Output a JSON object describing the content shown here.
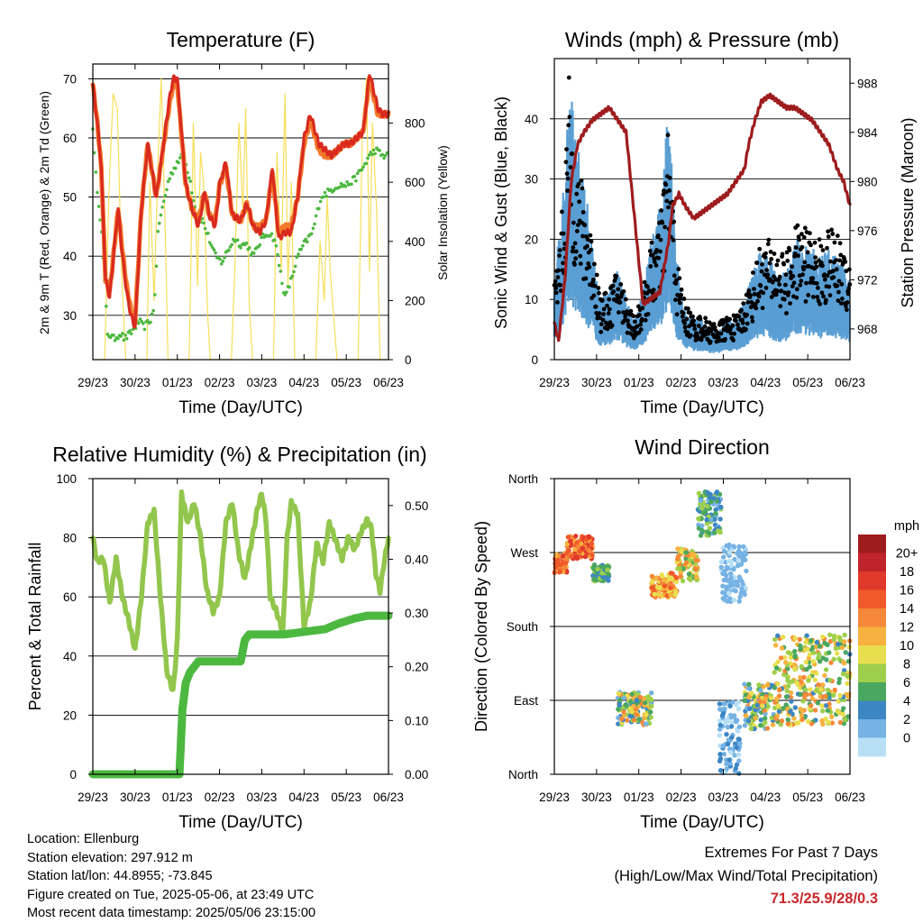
{
  "colors": {
    "temp_2m": "#d92a1f",
    "temp_9m": "#f2782a",
    "dewpoint": "#4cb840",
    "solar": "#f7df5a",
    "wind": "#5a9fd4",
    "gust": "#000000",
    "pressure": "#9e1c1e",
    "rh": "#92c64c",
    "rain": "#4cb840",
    "extremes": "#c8282b"
  },
  "x_axis": {
    "tick_labels": [
      "29/23",
      "30/23",
      "01/23",
      "02/23",
      "03/23",
      "04/23",
      "05/23",
      "06/23"
    ],
    "label": "Time (Day/UTC)"
  },
  "chart_data": [
    {
      "id": "temperature",
      "type": "line",
      "title": "Temperature (F)",
      "xlabel": "Time (Day/UTC)",
      "ylabel": "2m & 9m T (Red, Orange) & 2m Td (Green)",
      "ylabel_right": "Solar Insolation (Yellow)",
      "xlim": [
        0,
        7
      ],
      "ylim": [
        22.5,
        72.5
      ],
      "ylim_right": [
        0,
        1000
      ],
      "yticks": [
        30,
        40,
        50,
        60,
        70
      ],
      "yticks_right": [
        0,
        200,
        400,
        600,
        800
      ],
      "series": [
        {
          "name": "2m T",
          "axis": "left",
          "color_key": "temp_2m",
          "x": [
            0,
            0.1,
            0.2,
            0.3,
            0.4,
            0.5,
            0.6,
            0.7,
            0.8,
            0.9,
            1.0,
            1.15,
            1.3,
            1.5,
            1.6,
            1.8,
            1.9,
            2.0,
            2.2,
            2.35,
            2.5,
            2.65,
            2.75,
            2.9,
            3.0,
            3.15,
            3.3,
            3.5,
            3.65,
            3.8,
            3.95,
            4.1,
            4.25,
            4.4,
            4.55,
            4.7,
            4.85,
            5.0,
            5.15,
            5.35,
            5.5,
            5.65,
            5.8,
            5.95,
            6.1,
            6.25,
            6.4,
            6.55,
            6.65,
            6.75,
            6.85,
            7.0
          ],
          "values": [
            69,
            63,
            55,
            36,
            33,
            41,
            48,
            40,
            34,
            30,
            28,
            48,
            59,
            50,
            55,
            66,
            70,
            70,
            52,
            48,
            45,
            51,
            47,
            45,
            52,
            56,
            47,
            46,
            49,
            45,
            44,
            46,
            55,
            43,
            44,
            44,
            50,
            60,
            64,
            59,
            58,
            57,
            58,
            59,
            59,
            60,
            61,
            71,
            68,
            65,
            64,
            64
          ]
        },
        {
          "name": "9m T",
          "axis": "left",
          "color_key": "temp_9m",
          "x": [
            0,
            0.1,
            0.2,
            0.3,
            0.4,
            0.5,
            0.6,
            0.7,
            0.8,
            0.9,
            1.0,
            1.15,
            1.3,
            1.5,
            1.6,
            1.8,
            1.9,
            2.0,
            2.2,
            2.35,
            2.5,
            2.65,
            2.75,
            2.9,
            3.0,
            3.15,
            3.3,
            3.5,
            3.65,
            3.8,
            3.95,
            4.1,
            4.25,
            4.4,
            4.55,
            4.7,
            4.85,
            5.0,
            5.15,
            5.35,
            5.5,
            5.65,
            5.8,
            5.95,
            6.1,
            6.25,
            6.4,
            6.55,
            6.65,
            6.75,
            6.85,
            7.0
          ],
          "values": [
            69,
            63,
            55,
            36,
            34,
            41,
            48,
            41,
            35,
            31,
            29,
            48,
            59,
            50,
            55,
            65,
            69,
            69,
            52,
            48,
            46,
            51,
            47,
            46,
            52,
            55,
            47,
            46,
            49,
            45,
            45,
            46,
            54,
            44,
            45,
            45,
            50,
            59,
            63,
            58,
            57,
            57,
            58,
            59,
            59,
            60,
            61,
            70,
            67,
            64,
            64,
            64
          ]
        },
        {
          "name": "2m Td",
          "axis": "left",
          "color_key": "dewpoint",
          "x": [
            0,
            0.05,
            0.2,
            0.35,
            0.5,
            0.65,
            0.75,
            0.9,
            1.0,
            1.1,
            1.2,
            1.35,
            1.45,
            1.55,
            1.8,
            2.0,
            2.15,
            2.3,
            2.45,
            2.6,
            2.75,
            2.9,
            3.05,
            3.2,
            3.35,
            3.5,
            3.65,
            3.8,
            4.0,
            4.15,
            4.3,
            4.45,
            4.55,
            4.7,
            4.85,
            5.0,
            5.2,
            5.4,
            5.6,
            5.8,
            6.0,
            6.2,
            6.4,
            6.55,
            6.7,
            6.85,
            7.0
          ],
          "values": [
            62,
            55,
            45,
            27,
            26,
            27,
            26,
            27,
            28,
            29,
            28,
            29,
            31,
            45,
            53,
            56,
            57,
            53,
            47,
            46,
            43,
            40,
            39,
            41,
            43,
            42,
            42,
            40,
            43,
            44,
            43,
            37,
            33,
            36,
            40,
            42,
            44,
            50,
            51,
            52,
            52,
            53,
            55,
            57,
            58,
            57,
            57
          ]
        },
        {
          "name": "Solar Insolation",
          "axis": "right",
          "color_key": "solar",
          "x": [
            0,
            0.28,
            0.38,
            0.48,
            0.58,
            0.68,
            0.78,
            1.28,
            1.35,
            1.45,
            1.55,
            1.62,
            1.72,
            1.78,
            2.28,
            2.38,
            2.48,
            2.55,
            2.62,
            2.72,
            2.78,
            3.28,
            3.36,
            3.46,
            3.55,
            3.62,
            3.7,
            3.78,
            4.28,
            4.36,
            4.46,
            4.55,
            4.62,
            4.7,
            4.78,
            5.28,
            5.38,
            5.48,
            5.55,
            5.62,
            5.7,
            5.78,
            6.28,
            6.38,
            6.48,
            6.55,
            6.62,
            6.72,
            6.8,
            7.0
          ],
          "values": [
            0,
            0,
            560,
            900,
            850,
            300,
            0,
            0,
            600,
            200,
            700,
            950,
            400,
            0,
            0,
            800,
            250,
            700,
            600,
            150,
            0,
            0,
            300,
            800,
            500,
            850,
            200,
            0,
            0,
            700,
            300,
            900,
            250,
            600,
            0,
            0,
            400,
            200,
            550,
            300,
            150,
            0,
            0,
            750,
            950,
            300,
            800,
            500,
            0,
            0
          ]
        }
      ]
    },
    {
      "id": "winds",
      "type": "scatter",
      "title": "Winds (mph) & Pressure (mb)",
      "xlabel": "Time (Day/UTC)",
      "ylabel": "Sonic Wind & Gust (Blue, Black)",
      "ylabel_right": "Station Pressure (Maroon)",
      "xlim": [
        0,
        7
      ],
      "ylim": [
        0,
        50
      ],
      "ylim_right": [
        965.5,
        990
      ],
      "yticks": [
        0,
        10,
        20,
        30,
        40
      ],
      "yticks_right": [
        968,
        972,
        976,
        980,
        984,
        988
      ],
      "wind_envelope": {
        "x": [
          0,
          0.2,
          0.35,
          0.5,
          0.7,
          0.9,
          1.1,
          1.3,
          1.5,
          1.7,
          1.9,
          2.1,
          2.3,
          2.5,
          2.7,
          2.9,
          3.1,
          3.3,
          3.5,
          3.7,
          3.9,
          4.1,
          4.3,
          4.5,
          4.7,
          4.9,
          5.1,
          5.3,
          5.5,
          5.7,
          5.9,
          6.1,
          6.3,
          6.5,
          6.7,
          6.9,
          7.0
        ],
        "mean": [
          8,
          16,
          28,
          22,
          18,
          12,
          6,
          7,
          9,
          6,
          4,
          7,
          12,
          15,
          25,
          10,
          5,
          4,
          4,
          3,
          3,
          4,
          4,
          6,
          9,
          11,
          10,
          8,
          9,
          12,
          12,
          11,
          10,
          11,
          10,
          9,
          8
        ],
        "gust": [
          12,
          25,
          45,
          32,
          27,
          20,
          10,
          11,
          15,
          10,
          7,
          11,
          19,
          22,
          38,
          16,
          9,
          7,
          7,
          6,
          6,
          7,
          7,
          10,
          14,
          19,
          19,
          18,
          17,
          21,
          22,
          20,
          19,
          21,
          20,
          18,
          16
        ]
      },
      "pressure": {
        "x": [
          0,
          0.1,
          0.25,
          0.4,
          0.55,
          0.7,
          0.9,
          1.1,
          1.3,
          1.5,
          1.7,
          1.9,
          2.1,
          2.3,
          2.5,
          2.7,
          2.8,
          2.95,
          3.1,
          3.3,
          3.5,
          3.7,
          3.9,
          4.1,
          4.3,
          4.5,
          4.6,
          4.75,
          4.9,
          5.1,
          5.3,
          5.5,
          5.7,
          5.9,
          6.1,
          6.3,
          6.5,
          6.7,
          6.85,
          7.0
        ],
        "values": [
          968.5,
          967,
          972,
          980,
          983,
          984,
          985,
          985.5,
          986,
          985,
          984,
          977,
          970,
          970.5,
          971,
          975,
          978,
          979,
          978,
          977,
          977.5,
          978,
          978.5,
          979,
          980,
          981,
          983,
          985,
          986.5,
          987,
          986.5,
          986,
          986,
          985.5,
          985,
          984,
          983,
          981,
          980,
          978
        ]
      }
    },
    {
      "id": "rh_precip",
      "type": "line",
      "title": "Relative Humidity (%) & Precipitation (in)",
      "xlabel": "Time (Day/UTC)",
      "ylabel": "Percent & Total Rainfall",
      "xlim": [
        0,
        7
      ],
      "ylim": [
        0,
        100
      ],
      "ylim_right": [
        0,
        0.55
      ],
      "yticks": [
        0,
        20,
        40,
        60,
        80,
        100
      ],
      "yticks_right": [
        "0.00",
        "0.10",
        "0.20",
        "0.30",
        "0.40",
        "0.50"
      ],
      "series": [
        {
          "name": "Relative Humidity",
          "axis": "left",
          "color_key": "rh",
          "x": [
            0,
            0.1,
            0.25,
            0.4,
            0.55,
            0.7,
            0.85,
            1.0,
            1.15,
            1.3,
            1.45,
            1.6,
            1.75,
            1.9,
            2.0,
            2.1,
            2.25,
            2.4,
            2.55,
            2.7,
            2.85,
            3.0,
            3.15,
            3.3,
            3.45,
            3.6,
            3.75,
            3.9,
            4.0,
            4.1,
            4.2,
            4.35,
            4.5,
            4.6,
            4.7,
            4.85,
            5.0,
            5.15,
            5.3,
            5.45,
            5.6,
            5.75,
            5.9,
            6.05,
            6.2,
            6.35,
            6.5,
            6.6,
            6.7,
            6.8,
            6.9,
            7.0
          ],
          "values": [
            80,
            72,
            73,
            58,
            73,
            60,
            52,
            42,
            60,
            85,
            89,
            60,
            35,
            28,
            45,
            95,
            85,
            92,
            80,
            62,
            55,
            60,
            85,
            92,
            75,
            66,
            78,
            90,
            95,
            86,
            60,
            55,
            48,
            80,
            92,
            88,
            50,
            58,
            78,
            72,
            85,
            79,
            73,
            80,
            76,
            82,
            86,
            83,
            68,
            62,
            72,
            80
          ]
        },
        {
          "name": "Total Rainfall",
          "axis": "right",
          "color_key": "rain",
          "step": true,
          "x": [
            0,
            2.05,
            2.08,
            2.12,
            2.2,
            2.3,
            2.4,
            2.5,
            3.5,
            3.55,
            3.6,
            3.7,
            4.5,
            5.5,
            5.8,
            6.2,
            6.5,
            7.0
          ],
          "values": [
            0.0,
            0.0,
            0.05,
            0.12,
            0.17,
            0.19,
            0.2,
            0.21,
            0.21,
            0.23,
            0.25,
            0.26,
            0.26,
            0.27,
            0.28,
            0.29,
            0.295,
            0.295
          ]
        }
      ]
    },
    {
      "id": "wind_direction",
      "type": "scatter",
      "title": "Wind Direction",
      "xlabel": "Time (Day/UTC)",
      "ylabel": "Direction (Colored By Speed)",
      "xlim": [
        0,
        7
      ],
      "ylim": [
        0,
        360
      ],
      "yticks": [
        "North",
        "East",
        "South",
        "West",
        "North"
      ],
      "colorbar": {
        "title": "mph",
        "labels": [
          "20+",
          "18",
          "16",
          "14",
          "12",
          "10",
          "8",
          "6",
          "4",
          "2",
          "0"
        ],
        "colors": [
          "#9e1c1e",
          "#c0242a",
          "#e0392b",
          "#f05a2a",
          "#f6883a",
          "#f6b13f",
          "#e9df4e",
          "#9dcf4b",
          "#4aa75f",
          "#3c86c4",
          "#76b2e4",
          "#b7e0f6"
        ]
      },
      "clusters": [
        {
          "x": [
            0,
            0.3
          ],
          "dir": [
            245,
            270
          ],
          "speed": [
            12,
            20
          ]
        },
        {
          "x": [
            0.3,
            0.9
          ],
          "dir": [
            262,
            290
          ],
          "speed": [
            13,
            20
          ]
        },
        {
          "x": [
            0.9,
            1.3
          ],
          "dir": [
            235,
            255
          ],
          "speed": [
            5,
            9
          ]
        },
        {
          "x": [
            1.5,
            2.3
          ],
          "dir": [
            60,
            100
          ],
          "speed": [
            2,
            16
          ]
        },
        {
          "x": [
            2.3,
            2.9
          ],
          "dir": [
            215,
            245
          ],
          "speed": [
            10,
            18
          ]
        },
        {
          "x": [
            2.9,
            3.4
          ],
          "dir": [
            235,
            275
          ],
          "speed": [
            7,
            16
          ]
        },
        {
          "x": [
            3.4,
            3.95
          ],
          "dir": [
            290,
            345
          ],
          "speed": [
            3,
            10
          ]
        },
        {
          "x": [
            3.95,
            4.55
          ],
          "dir": [
            210,
            280
          ],
          "speed": [
            1,
            4
          ]
        },
        {
          "x": [
            3.9,
            4.4
          ],
          "dir": [
            0,
            90
          ],
          "speed": [
            1,
            6
          ]
        },
        {
          "x": [
            4.5,
            5.2
          ],
          "dir": [
            55,
            110
          ],
          "speed": [
            2,
            15
          ]
        },
        {
          "x": [
            5.2,
            7.0
          ],
          "dir": [
            60,
            170
          ],
          "speed": [
            5,
            16
          ]
        }
      ]
    }
  ],
  "info": {
    "location": "Location: Ellenburg",
    "elevation": "Station elevation: 297.912 m",
    "latlon": "Station lat/lon: 44.8955; -73.845",
    "created": "Figure created on Tue, 2025-05-06, at 23:49 UTC",
    "recent": "Most recent data timestamp: 2025/05/06 23:15:00"
  },
  "extremes": {
    "title": "Extremes For Past 7 Days",
    "subtitle": "(High/Low/Max Wind/Total Precipitation)",
    "values": "71.3/25.9/28/0.3"
  }
}
